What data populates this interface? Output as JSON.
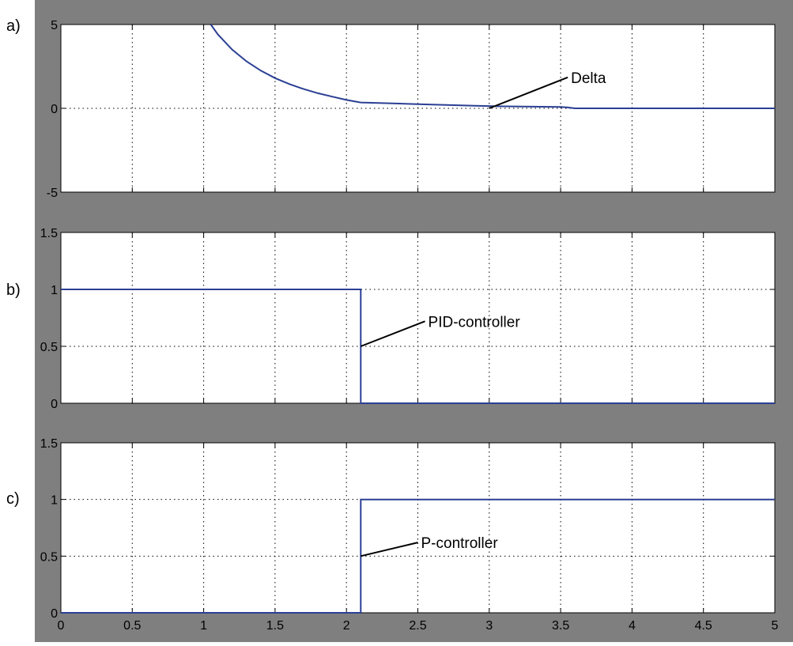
{
  "colors": {
    "figure_background": "#7f7f7f",
    "axes_background": "#ffffff",
    "line": "#2b3f94",
    "grid": "#000000",
    "annotation_line": "#000000"
  },
  "panel_labels": [
    "a)",
    "b)",
    "c)"
  ],
  "x_tick_labels": [
    "0",
    "0.5",
    "1",
    "1.5",
    "2",
    "2.5",
    "3",
    "3.5",
    "4",
    "4.5",
    "5"
  ],
  "chart_data": [
    {
      "type": "line",
      "panel": "a)",
      "xlim": [
        0,
        5
      ],
      "ylim": [
        -5,
        5
      ],
      "grid": true,
      "y_tick_labels": [
        "-5",
        "0",
        "5"
      ],
      "y_ticks": [
        -5,
        0,
        5
      ],
      "series": [
        {
          "x": [
            1.05,
            1.1,
            1.2,
            1.3,
            1.4,
            1.5,
            1.6,
            1.7,
            1.8,
            1.9,
            2.0,
            2.1,
            2.3,
            2.5,
            2.7,
            2.9,
            3.1,
            3.3,
            3.5,
            3.55,
            3.6,
            4.0,
            4.5,
            5.0
          ],
          "y": [
            5.0,
            4.4,
            3.5,
            2.8,
            2.25,
            1.8,
            1.45,
            1.15,
            0.9,
            0.7,
            0.5,
            0.35,
            0.3,
            0.25,
            0.2,
            0.15,
            0.12,
            0.1,
            0.08,
            0.05,
            0.0,
            0.0,
            0.0,
            0.0
          ]
        }
      ],
      "annotation": {
        "text": "Delta",
        "point": [
          3.0,
          0.0
        ],
        "label_at": [
          3.55,
          1.85
        ]
      }
    },
    {
      "type": "line",
      "panel": "b)",
      "xlim": [
        0,
        5
      ],
      "ylim": [
        0,
        1.5
      ],
      "grid": true,
      "y_tick_labels": [
        "0",
        "0.5",
        "1",
        "1.5"
      ],
      "y_ticks": [
        0,
        0.5,
        1,
        1.5
      ],
      "series": [
        {
          "x": [
            0,
            2.1,
            2.1,
            5
          ],
          "y": [
            1,
            1,
            0,
            0
          ]
        }
      ],
      "annotation": {
        "text": "PID-controller",
        "point": [
          2.1,
          0.5
        ],
        "label_at": [
          2.55,
          0.72
        ]
      }
    },
    {
      "type": "line",
      "panel": "c)",
      "xlim": [
        0,
        5
      ],
      "ylim": [
        0,
        1.5
      ],
      "grid": true,
      "y_tick_labels": [
        "0",
        "0.5",
        "1",
        "1.5"
      ],
      "y_ticks": [
        0,
        0.5,
        1,
        1.5
      ],
      "series": [
        {
          "x": [
            0,
            2.1,
            2.1,
            5
          ],
          "y": [
            0,
            0,
            1,
            1
          ]
        }
      ],
      "annotation": {
        "text": "P-controller",
        "point": [
          2.1,
          0.5
        ],
        "label_at": [
          2.5,
          0.62
        ]
      }
    }
  ]
}
